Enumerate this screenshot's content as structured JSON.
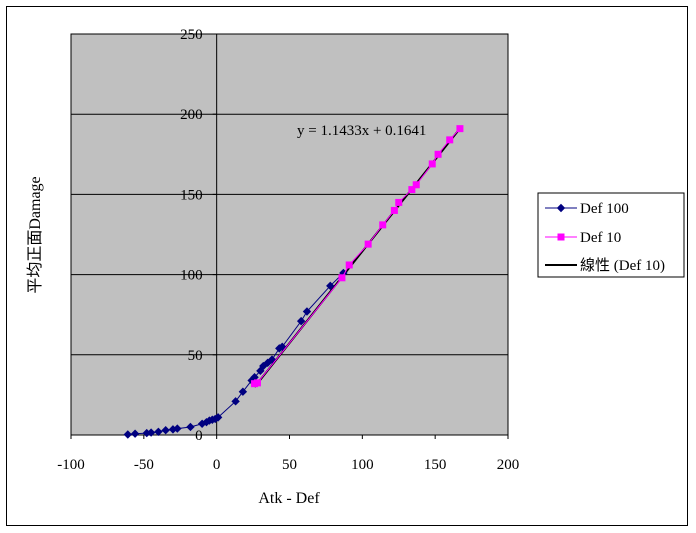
{
  "chart_data": {
    "type": "scatter",
    "xlabel": "Atk - Def",
    "ylabel": "平均正面Damage",
    "xlim": [
      -100,
      200
    ],
    "ylim": [
      0,
      250
    ],
    "xticks": [
      -100,
      -50,
      0,
      50,
      100,
      150,
      200
    ],
    "yticks": [
      0,
      50,
      100,
      150,
      200,
      250
    ],
    "grid": "horizontal",
    "plot_background": "#c0c0c0",
    "legend_position": "right",
    "series": [
      {
        "name": "Def 100",
        "color": "#000080",
        "marker": "diamond",
        "line": true,
        "x": [
          -61,
          -56,
          -48,
          -45,
          -40,
          -35,
          -30,
          -27,
          -18,
          -10,
          -7,
          -5,
          -3,
          -1,
          1,
          13,
          18,
          24,
          26,
          30,
          32,
          35,
          38,
          43,
          45,
          58,
          62,
          78,
          87
        ],
        "y": [
          0.3,
          0.8,
          1.2,
          1.5,
          2,
          3,
          3.5,
          4,
          5,
          7,
          8,
          9,
          9.5,
          10,
          11,
          21,
          27,
          34,
          36,
          40,
          43,
          45,
          47,
          54,
          55,
          71,
          77,
          93,
          101
        ]
      },
      {
        "name": "Def 10",
        "color": "#ff00ff",
        "marker": "square",
        "line": true,
        "x": [
          26,
          28,
          86,
          91,
          104,
          114,
          122,
          125,
          134,
          137,
          148,
          152,
          160,
          167
        ],
        "y": [
          32,
          32.5,
          98,
          106,
          119,
          131,
          140,
          145,
          153,
          156,
          169,
          175,
          184,
          191
        ]
      }
    ],
    "trendline": {
      "name": "線性 (Def 10)",
      "color": "#000000",
      "slope": 1.1433,
      "intercept": 0.1641,
      "x_range": [
        26,
        167
      ],
      "equation": "y = 1.1433x + 0.1641"
    }
  }
}
